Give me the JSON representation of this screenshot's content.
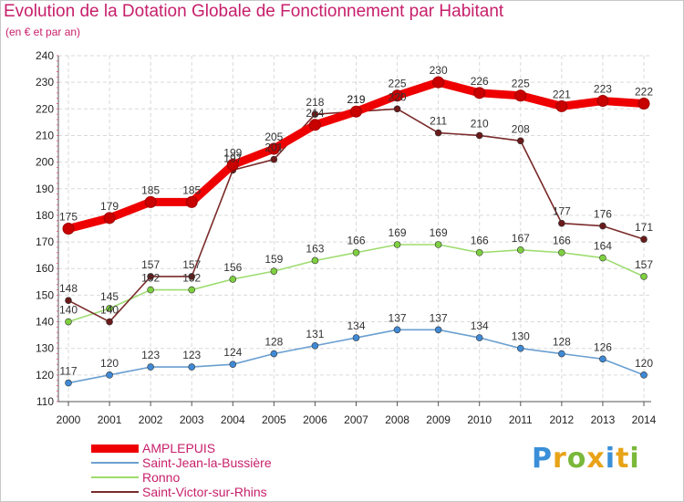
{
  "title": "Evolution de la Dotation Globale de Fonctionnement par Habitant",
  "subtitle": "(en € et par an)",
  "logo": {
    "text": "Proxiti",
    "letters": [
      {
        "ch": "P",
        "color": "#3a8fd8"
      },
      {
        "ch": "r",
        "color": "#e8a318"
      },
      {
        "ch": "o",
        "color": "#7ab83a"
      },
      {
        "ch": "x",
        "color": "#e8a318"
      },
      {
        "ch": "i",
        "color": "#3a8fd8"
      },
      {
        "ch": "t",
        "color": "#e8a318"
      },
      {
        "ch": "i",
        "color": "#7ab83a"
      }
    ]
  },
  "chart_data": {
    "type": "line",
    "title": "Evolution de la Dotation Globale de Fonctionnement par Habitant",
    "subtitle": "(en € et par an)",
    "x": [
      "2000",
      "2001",
      "2002",
      "2003",
      "2004",
      "2005",
      "2006",
      "2007",
      "2008",
      "2009",
      "2010",
      "2011",
      "2012",
      "2013",
      "2014"
    ],
    "ylim": [
      110,
      240
    ],
    "yticks": [
      110,
      120,
      130,
      140,
      150,
      160,
      170,
      180,
      190,
      200,
      210,
      220,
      230,
      240
    ],
    "grid": true,
    "legend_position": "bottom-left",
    "series": [
      {
        "name": "AMPLEPUIS",
        "color": "#ee0000",
        "marker": "#c80000",
        "emphasis": true,
        "values": [
          175,
          179,
          185,
          185,
          199,
          205,
          214,
          219,
          225,
          230,
          226,
          225,
          221,
          223,
          222
        ]
      },
      {
        "name": "Saint-Jean-la-Bussière",
        "color": "#6a9fd0",
        "marker": "#3f8ad6",
        "emphasis": false,
        "values": [
          117,
          120,
          123,
          123,
          124,
          128,
          131,
          134,
          137,
          137,
          134,
          130,
          128,
          126,
          120
        ]
      },
      {
        "name": "Ronno",
        "color": "#9ddc6f",
        "marker": "#7ed040",
        "emphasis": false,
        "values": [
          140,
          145,
          152,
          152,
          156,
          159,
          163,
          166,
          169,
          169,
          166,
          167,
          166,
          164,
          157
        ]
      },
      {
        "name": "Saint-Victor-sur-Rhins",
        "color": "#7a2a2a",
        "marker": "#6a1a1a",
        "emphasis": false,
        "values": [
          148,
          140,
          157,
          157,
          197,
          201,
          218,
          219,
          220,
          211,
          210,
          208,
          177,
          176,
          171
        ]
      }
    ]
  }
}
